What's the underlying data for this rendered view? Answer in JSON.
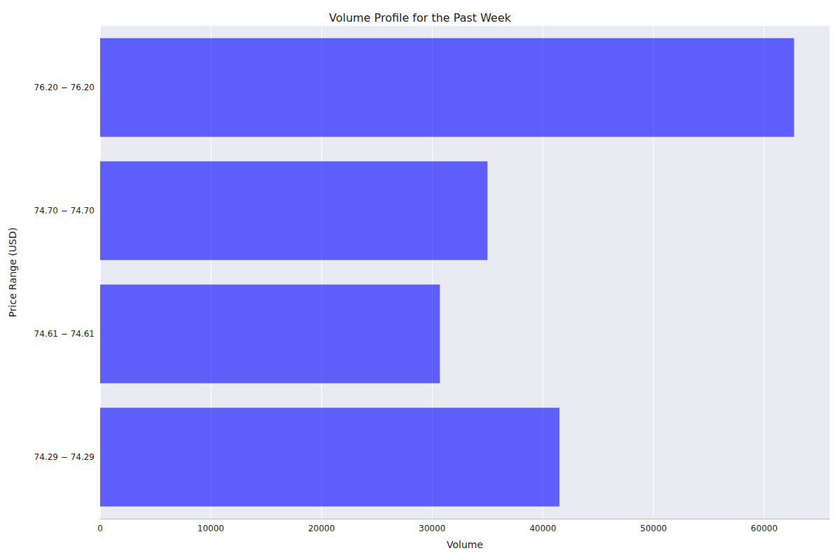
{
  "chart_data": {
    "type": "bar",
    "orientation": "horizontal",
    "title": "Volume Profile for the Past Week",
    "x_label": "Volume",
    "y_label": "Price Range (USD)",
    "categories": [
      "74.29 − 74.29",
      "74.61 − 74.61",
      "74.70 − 74.70",
      "76.20 − 76.20"
    ],
    "values": [
      41500,
      30700,
      35000,
      62700
    ],
    "color": "#0000ff",
    "xlim": [
      0,
      65900
    ],
    "xticks": [
      0,
      10000,
      20000,
      30000,
      40000,
      50000,
      60000
    ],
    "grid": true
  }
}
